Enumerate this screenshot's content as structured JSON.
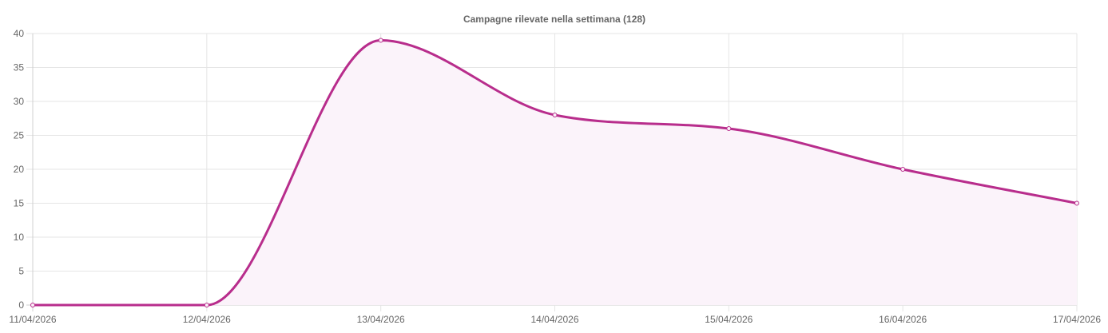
{
  "chart_data": {
    "type": "line",
    "title": "Campagne rilevate nella settimana (128)",
    "xlabel": "",
    "ylabel": "",
    "categories": [
      "11/04/2026",
      "12/04/2026",
      "13/04/2026",
      "14/04/2026",
      "15/04/2026",
      "16/04/2026",
      "17/04/2026"
    ],
    "series": [
      {
        "values": [
          0,
          0,
          39,
          28,
          26,
          20,
          15
        ],
        "color": "#b82d8c",
        "fill_color": "#fbf3fa"
      }
    ],
    "ylim": [
      0,
      40
    ],
    "yticks": [
      "0",
      "5",
      "10",
      "15",
      "20",
      "25",
      "30",
      "35",
      "40"
    ],
    "grid": true,
    "legend": "none",
    "smooth": true,
    "filled_area": true
  }
}
